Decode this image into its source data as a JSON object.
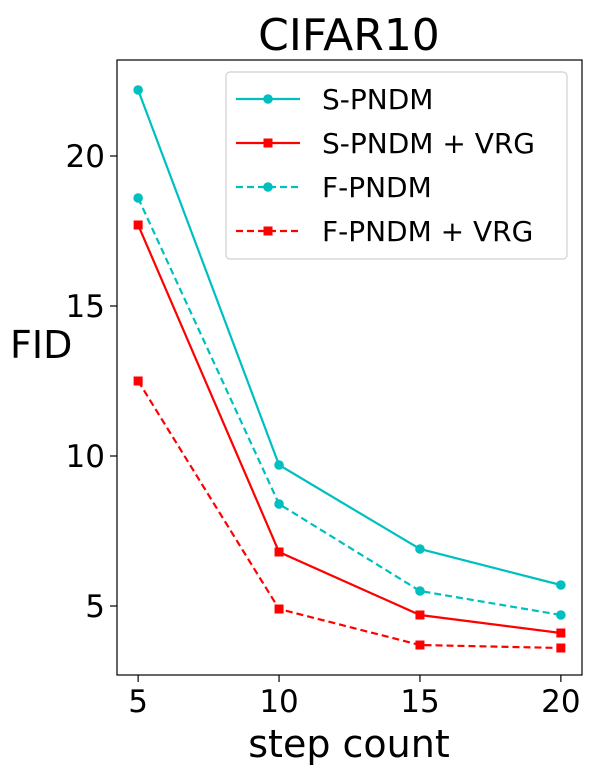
{
  "chart_data": {
    "type": "line",
    "title": "CIFAR10",
    "xlabel": "step count",
    "ylabel": "FID",
    "x": [
      5,
      10,
      15,
      20
    ],
    "xticks": [
      "5",
      "10",
      "15",
      "20"
    ],
    "yticks": [
      "5",
      "10",
      "15",
      "20"
    ],
    "xlim": [
      4.25,
      20.75
    ],
    "ylim": [
      2.7,
      23.2
    ],
    "grid": false,
    "legend_position": "top-right",
    "series": [
      {
        "name": "S-PNDM",
        "values": [
          22.2,
          9.7,
          6.9,
          5.7
        ],
        "color": "#00BFBF",
        "linestyle": "solid",
        "marker": "circle"
      },
      {
        "name": "S-PNDM + VRG",
        "values": [
          17.7,
          6.8,
          4.7,
          4.1
        ],
        "color": "#FF0000",
        "linestyle": "solid",
        "marker": "square"
      },
      {
        "name": "F-PNDM",
        "values": [
          18.6,
          8.4,
          5.5,
          4.7
        ],
        "color": "#00BFBF",
        "linestyle": "dashed",
        "marker": "circle"
      },
      {
        "name": "F-PNDM + VRG",
        "values": [
          12.5,
          4.9,
          3.7,
          3.6
        ],
        "color": "#FF0000",
        "linestyle": "dashed",
        "marker": "square"
      }
    ]
  }
}
